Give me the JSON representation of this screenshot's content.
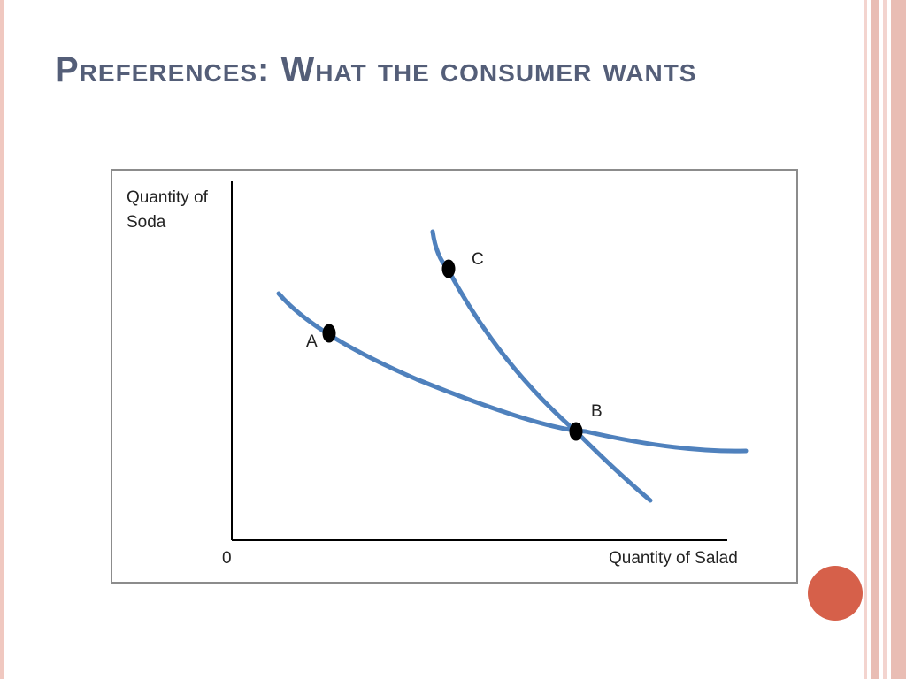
{
  "slide": {
    "title": "Preferences: What the consumer wants"
  },
  "diagram": {
    "y_axis_label_line1": "Quantity of",
    "y_axis_label_line2": "Soda",
    "x_axis_label": "Quantity of Salad",
    "origin_label": "0",
    "curves": [
      {
        "id": "flatter-indifference-curve",
        "points": [
          "A",
          "B"
        ]
      },
      {
        "id": "steeper-indifference-curve",
        "points": [
          "C",
          "B"
        ]
      }
    ],
    "points": {
      "A": "A",
      "B": "B",
      "C": "C"
    }
  },
  "colors": {
    "curve": "#4f81bd",
    "point": "#000000",
    "title": "#545e78",
    "accent": "#d6604a",
    "frame": "#8c8c8c",
    "stripe": "#f0c8c0"
  }
}
